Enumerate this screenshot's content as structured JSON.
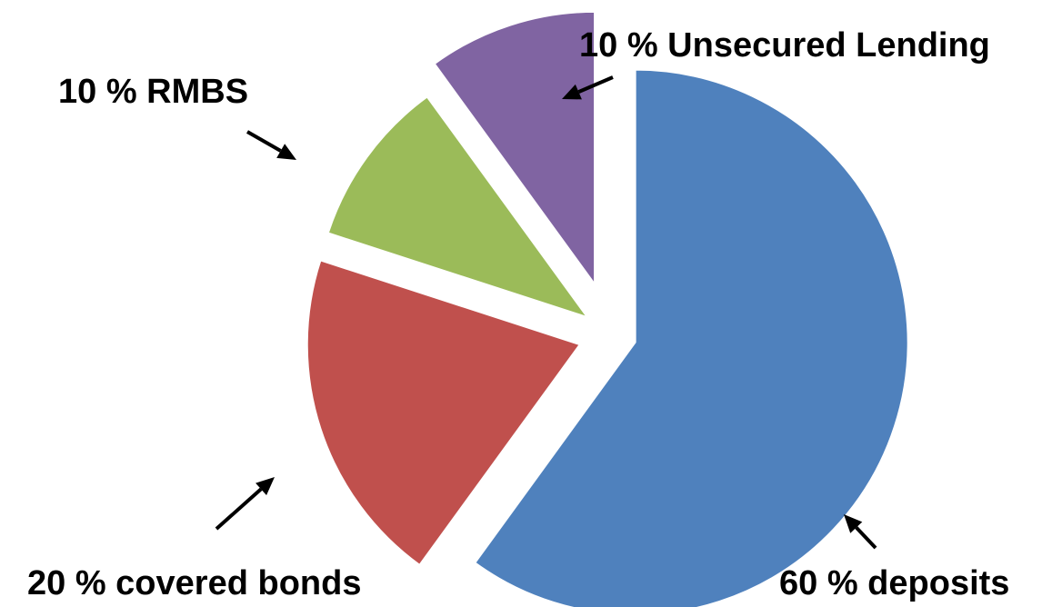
{
  "chart_data": {
    "type": "pie",
    "title": "",
    "categories": [
      "deposits",
      "covered bonds",
      "RMBS",
      "Unsecured Lending"
    ],
    "values": [
      60,
      20,
      10,
      10
    ],
    "labels": [
      "60 % deposits",
      "20 % covered bonds",
      "10 % RMBS",
      "10 % Unsecured Lending"
    ],
    "colors": [
      "#4F81BD",
      "#C0504D",
      "#9BBB59",
      "#8064A2"
    ],
    "exploded": true,
    "legend": "none"
  }
}
